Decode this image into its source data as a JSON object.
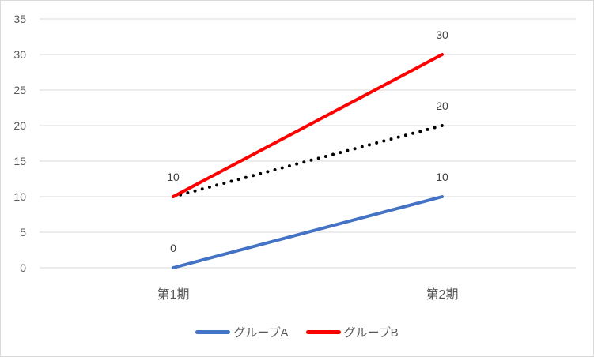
{
  "chart_data": {
    "type": "line",
    "title": "",
    "xlabel": "",
    "ylabel": "",
    "categories": [
      "第1期",
      "第2期"
    ],
    "ylim": [
      0,
      35
    ],
    "yticks": [
      0,
      5,
      10,
      15,
      20,
      25,
      30,
      35
    ],
    "grid": true,
    "legend_position": "bottom",
    "series": [
      {
        "name": "グループA",
        "values": [
          0,
          10
        ],
        "color": "#4472C4",
        "style": "solid",
        "data_labels": [
          "0",
          "10"
        ]
      },
      {
        "name": "グループB",
        "values": [
          10,
          30
        ],
        "color": "#FF0000",
        "style": "solid",
        "data_labels": [
          "10",
          "30"
        ]
      }
    ],
    "annotations": [
      {
        "type": "dotted-line",
        "from": {
          "x": "第1期",
          "y": 10
        },
        "to": {
          "x": "第2期",
          "y": 20
        },
        "color": "#000000",
        "label": "20"
      }
    ]
  },
  "legend": {
    "items": [
      {
        "label": "グループA",
        "color": "#4472C4"
      },
      {
        "label": "グループB",
        "color": "#FF0000"
      }
    ]
  }
}
